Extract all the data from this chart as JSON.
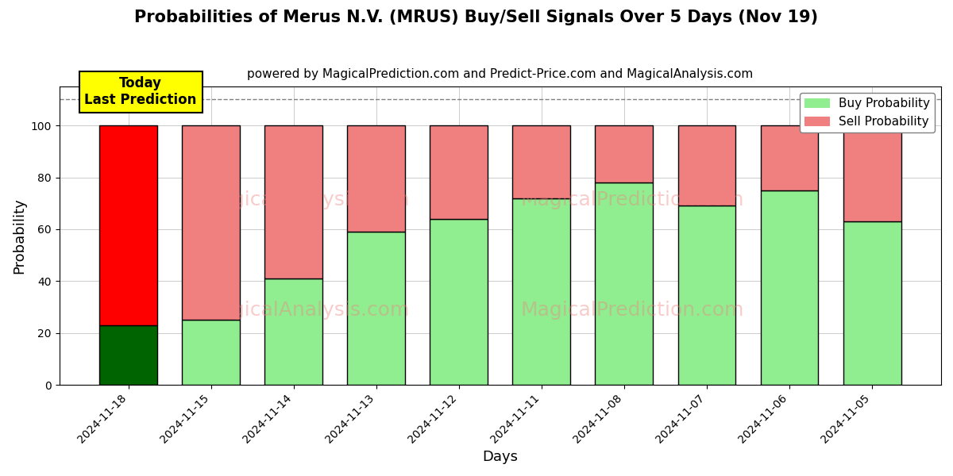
{
  "title": "Probabilities of Merus N.V. (MRUS) Buy/Sell Signals Over 5 Days (Nov 19)",
  "subtitle": "powered by MagicalPrediction.com and Predict-Price.com and MagicalAnalysis.com",
  "xlabel": "Days",
  "ylabel": "Probability",
  "categories": [
    "2024-11-18",
    "2024-11-15",
    "2024-11-14",
    "2024-11-13",
    "2024-11-12",
    "2024-11-11",
    "2024-11-08",
    "2024-11-07",
    "2024-11-06",
    "2024-11-05"
  ],
  "buy_values": [
    23,
    25,
    41,
    59,
    64,
    72,
    78,
    69,
    75,
    63
  ],
  "sell_values": [
    77,
    75,
    59,
    41,
    36,
    28,
    22,
    31,
    25,
    37
  ],
  "buy_colors": [
    "#006400",
    "#90EE90",
    "#90EE90",
    "#90EE90",
    "#90EE90",
    "#90EE90",
    "#90EE90",
    "#90EE90",
    "#90EE90",
    "#90EE90"
  ],
  "sell_colors": [
    "#FF0000",
    "#F08080",
    "#F08080",
    "#F08080",
    "#F08080",
    "#F08080",
    "#F08080",
    "#F08080",
    "#F08080",
    "#F08080"
  ],
  "legend_buy_color": "#90EE90",
  "legend_sell_color": "#F08080",
  "today_label": "Today\nLast Prediction",
  "today_label_bg": "#FFFF00",
  "dashed_line_y": 110,
  "ylim": [
    0,
    115
  ],
  "yticks": [
    0,
    20,
    40,
    60,
    80,
    100
  ],
  "background_color": "#ffffff",
  "grid_color": "#cccccc",
  "title_fontsize": 15,
  "subtitle_fontsize": 11,
  "axis_label_fontsize": 13,
  "tick_fontsize": 10,
  "legend_fontsize": 11,
  "watermark_color": "#F08080",
  "watermark_alpha": 0.4
}
